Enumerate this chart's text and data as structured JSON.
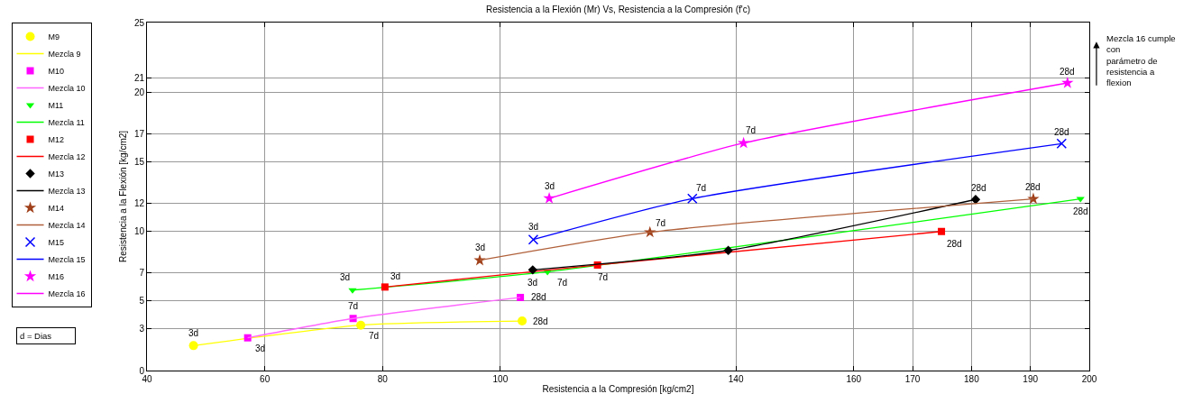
{
  "chart_data": {
    "type": "line",
    "title": "Resistencia a la Flexión (Mr) Vs, Resistencia a la Compresión (f'c)",
    "xlabel": "Resistencia a la Compresión [kg/cm2]",
    "ylabel": "Resistencia a la Flexión [kg/cm2]",
    "xlim": [
      40,
      200
    ],
    "xticks": [
      40,
      60,
      80,
      100,
      140,
      160,
      170,
      180,
      190,
      200
    ],
    "ylim": [
      0,
      25
    ],
    "yticks": [
      0,
      3,
      5,
      7,
      10,
      12,
      15,
      17,
      20,
      21,
      25
    ],
    "grid": true,
    "legend": "left",
    "series": [
      {
        "name": "M9",
        "type": "scatter",
        "marker": "circle",
        "color": "#ffff00",
        "x": [
          47.9,
          76.3,
          103.7
        ],
        "values": [
          1.79,
          3.26,
          3.56
        ]
      },
      {
        "name": "Mezcla 9",
        "color": "#ffff00",
        "x": [
          47.9,
          76.3,
          103.7
        ],
        "values": [
          1.79,
          3.26,
          3.56
        ]
      },
      {
        "name": "M10",
        "type": "scatter",
        "marker": "square",
        "color": "#ff00ff",
        "x": [
          57.1,
          75.0,
          103.4
        ],
        "values": [
          2.35,
          3.74,
          5.25
        ]
      },
      {
        "name": "Mezcla 10",
        "color": "#ff66ff",
        "x": [
          57.1,
          75.0,
          103.4
        ],
        "values": [
          2.35,
          3.74,
          5.25
        ]
      },
      {
        "name": "M11",
        "type": "scatter",
        "marker": "triangle",
        "color": "#00ff00",
        "x": [
          74.9,
          108.0,
          198.5
        ],
        "values": [
          5.78,
          7.1,
          12.33
        ]
      },
      {
        "name": "Mezcla 11",
        "color": "#00ff00",
        "x": [
          74.9,
          108.0,
          198.5
        ],
        "values": [
          5.78,
          7.1,
          12.33
        ]
      },
      {
        "name": "M12",
        "type": "scatter",
        "marker": "square",
        "color": "#ff0000",
        "x": [
          80.4,
          116.5,
          174.9
        ],
        "values": [
          6.0,
          7.58,
          9.99
        ]
      },
      {
        "name": "Mezcla 12",
        "color": "#ff0000",
        "x": [
          80.4,
          116.5,
          174.9
        ],
        "values": [
          6.0,
          7.58,
          9.99
        ]
      },
      {
        "name": "M13",
        "type": "scatter",
        "marker": "diamond",
        "color": "#000000",
        "x": [
          105.5,
          138.7,
          180.7
        ],
        "values": [
          7.23,
          8.63,
          12.29
        ]
      },
      {
        "name": "Mezcla 13",
        "color": "#000000",
        "x": [
          105.5,
          138.7,
          180.7
        ],
        "values": [
          7.23,
          8.63,
          12.29
        ]
      },
      {
        "name": "M14",
        "type": "scatter",
        "marker": "star",
        "color": "#a0401a",
        "x": [
          96.5,
          125.4,
          190.5
        ],
        "values": [
          7.92,
          9.93,
          12.33
        ]
      },
      {
        "name": "Mezcla 14",
        "color": "#b0603a",
        "x": [
          96.5,
          125.4,
          190.5
        ],
        "values": [
          7.92,
          9.93,
          12.33
        ]
      },
      {
        "name": "M15",
        "type": "scatter",
        "marker": "cross",
        "color": "#0000ff",
        "x": [
          105.6,
          132.6,
          195.3
        ],
        "values": [
          9.41,
          12.35,
          16.3
        ]
      },
      {
        "name": "Mezcla 15",
        "color": "#0000ff",
        "x": [
          105.6,
          132.6,
          195.3
        ],
        "values": [
          9.41,
          12.35,
          16.3
        ]
      },
      {
        "name": "M16",
        "type": "scatter",
        "marker": "star",
        "color": "#ff00ff",
        "x": [
          108.3,
          141.3,
          196.3
        ],
        "values": [
          12.37,
          16.34,
          20.66
        ]
      },
      {
        "name": "Mezcla 16",
        "color": "#ff00ff",
        "x": [
          108.3,
          141.3,
          196.3
        ],
        "values": [
          12.37,
          16.34,
          20.66
        ]
      }
    ],
    "annotations": [
      {
        "text": "3d",
        "x": 47.9,
        "y": 1.79
      },
      {
        "text": "7d",
        "x": 76.3,
        "y": 3.26
      },
      {
        "text": "28d",
        "x": 103.7,
        "y": 3.56
      },
      {
        "text": "3d",
        "x": 57.1,
        "y": 2.35
      },
      {
        "text": "7d",
        "x": 75.0,
        "y": 3.74
      },
      {
        "text": "28d",
        "x": 103.4,
        "y": 5.25
      },
      {
        "text": "3d",
        "x": 74.9,
        "y": 5.78
      },
      {
        "text": "7d",
        "x": 108.0,
        "y": 7.1
      },
      {
        "text": "28d",
        "x": 198.5,
        "y": 12.33
      },
      {
        "text": "3d",
        "x": 80.4,
        "y": 6.0
      },
      {
        "text": "7d",
        "x": 116.5,
        "y": 7.58
      },
      {
        "text": "28d",
        "x": 174.9,
        "y": 9.99
      },
      {
        "text": "3d",
        "x": 105.5,
        "y": 7.23
      },
      {
        "text": "28d",
        "x": 180.7,
        "y": 12.29
      },
      {
        "text": "3d",
        "x": 96.5,
        "y": 7.92
      },
      {
        "text": "7d",
        "x": 125.4,
        "y": 9.93
      },
      {
        "text": "28d",
        "x": 190.5,
        "y": 12.33
      },
      {
        "text": "3d",
        "x": 105.6,
        "y": 9.41
      },
      {
        "text": "7d",
        "x": 132.6,
        "y": 12.35
      },
      {
        "text": "28d",
        "x": 195.3,
        "y": 16.3
      },
      {
        "text": "3d",
        "x": 108.3,
        "y": 12.37
      },
      {
        "text": "7d",
        "x": 141.3,
        "y": 16.34
      },
      {
        "text": "28d",
        "x": 196.3,
        "y": 20.66
      },
      "Mezcla 16 cumple\ncon\nparámetro de\nresistencia a\nflexion",
      "d = Dias"
    ]
  }
}
